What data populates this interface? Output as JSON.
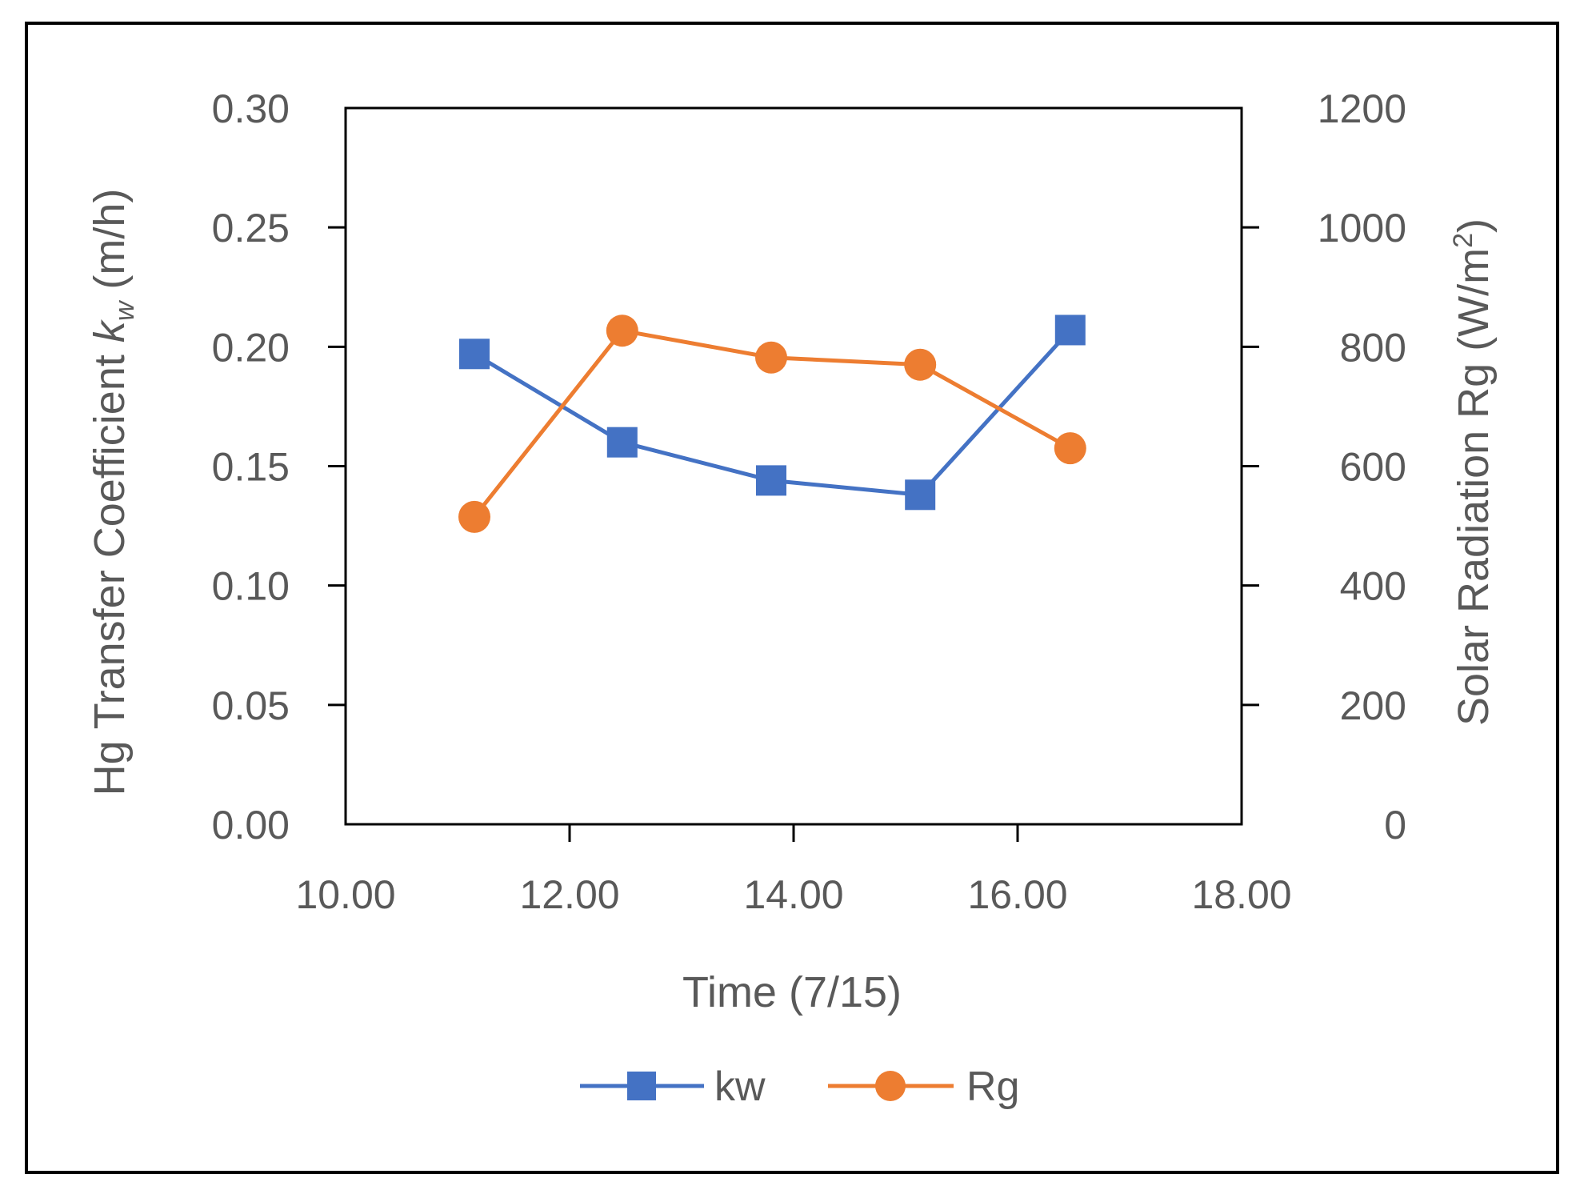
{
  "chart_data": {
    "type": "line",
    "xlabel": "Time (7/15)",
    "ylabel_left": {
      "main": "Hg Transfer Coefficient ",
      "k": "k",
      "sub": "w",
      "unit": " (m/h)"
    },
    "ylabel_right": {
      "main": "Solar Radiation Rg (W/m",
      "sup": "2",
      "close": ")"
    },
    "xlim": [
      10,
      18
    ],
    "ylim_left": [
      0,
      0.3
    ],
    "ylim_right": [
      0,
      1200
    ],
    "x_ticks": [
      "10.00",
      "12.00",
      "14.00",
      "16.00",
      "18.00"
    ],
    "x_tick_values": [
      10,
      12,
      14,
      16,
      18
    ],
    "y_left_ticks": [
      "0.00",
      "0.05",
      "0.10",
      "0.15",
      "0.20",
      "0.25",
      "0.30"
    ],
    "y_left_tick_values": [
      0,
      0.05,
      0.1,
      0.15,
      0.2,
      0.25,
      0.3
    ],
    "y_right_ticks": [
      "0",
      "200",
      "400",
      "600",
      "800",
      "1000",
      "1200"
    ],
    "y_right_tick_values": [
      0,
      200,
      400,
      600,
      800,
      1000,
      1200
    ],
    "grid": false,
    "legend_position": "bottom",
    "series": [
      {
        "name": "kw",
        "axis": "left",
        "marker": "square",
        "color": "#4472C4",
        "x": [
          11.15,
          12.47,
          13.8,
          15.13,
          16.47
        ],
        "y": [
          0.197,
          0.16,
          0.144,
          0.138,
          0.207
        ]
      },
      {
        "name": "Rg",
        "axis": "right",
        "marker": "circle",
        "color": "#ED7D31",
        "x": [
          11.15,
          12.47,
          13.8,
          15.13,
          16.47
        ],
        "y": [
          515,
          827,
          782,
          770,
          630
        ]
      }
    ]
  }
}
